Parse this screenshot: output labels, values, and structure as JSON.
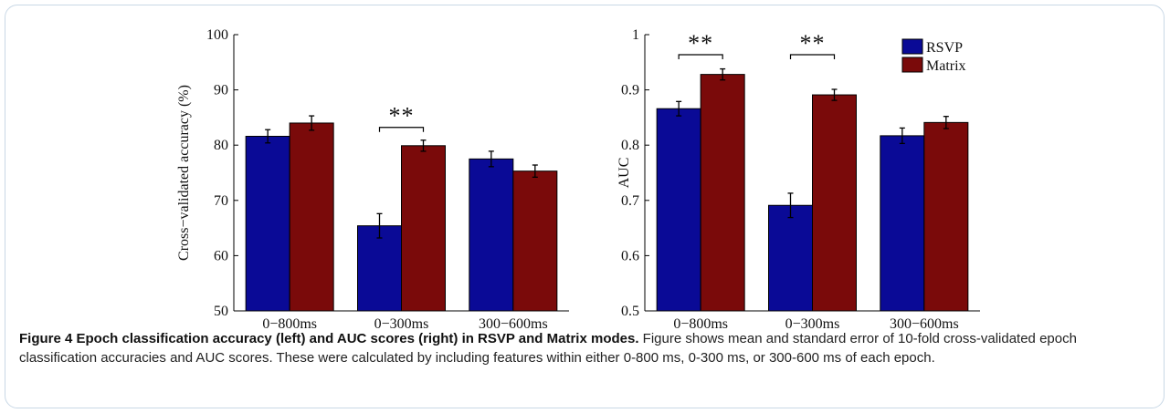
{
  "chart_data": [
    {
      "type": "bar",
      "categories": [
        "0−800ms",
        "0−300ms",
        "300−600ms"
      ],
      "series": [
        {
          "name": "RSVP",
          "values": [
            81.6,
            65.4,
            77.5
          ],
          "errors": [
            1.2,
            2.2,
            1.4
          ],
          "color": "#0a0a96"
        },
        {
          "name": "Matrix",
          "values": [
            84.0,
            79.9,
            75.3
          ],
          "errors": [
            1.3,
            1.0,
            1.1
          ],
          "color": "#7a0a0a"
        }
      ],
      "ylabel": "Cross−validated accuracy (%)",
      "ylim": [
        50,
        100
      ],
      "yticks": [
        "50",
        "60",
        "70",
        "80",
        "90",
        "100"
      ],
      "significance": [
        {
          "category_index": 1,
          "label": "**"
        }
      ],
      "grid": false
    },
    {
      "type": "bar",
      "categories": [
        "0−800ms",
        "0−300ms",
        "300−600ms"
      ],
      "series": [
        {
          "name": "RSVP",
          "values": [
            0.866,
            0.691,
            0.817
          ],
          "errors": [
            0.013,
            0.022,
            0.014
          ],
          "color": "#0a0a96"
        },
        {
          "name": "Matrix",
          "values": [
            0.928,
            0.891,
            0.841
          ],
          "errors": [
            0.01,
            0.01,
            0.011
          ],
          "color": "#7a0a0a"
        }
      ],
      "ylabel": "AUC",
      "ylim": [
        0.5,
        1
      ],
      "yticks": [
        "0.5",
        "0.6",
        "0.7",
        "0.8",
        "0.9",
        "1"
      ],
      "significance": [
        {
          "category_index": 0,
          "label": "**"
        },
        {
          "category_index": 1,
          "label": "**"
        }
      ],
      "legend": {
        "placement": "top-right",
        "entries": [
          "RSVP",
          "Matrix"
        ]
      },
      "grid": false
    }
  ],
  "caption": {
    "title": "Figure 4 Epoch classification accuracy (left) and AUC scores (right) in RSVP and Matrix modes.",
    "text": " Figure shows mean and standard error of 10-fold cross-validated epoch classification accuracies and AUC scores. These were calculated by including features within either 0-800 ms, 0-300 ms, or 300-600 ms of each epoch."
  }
}
